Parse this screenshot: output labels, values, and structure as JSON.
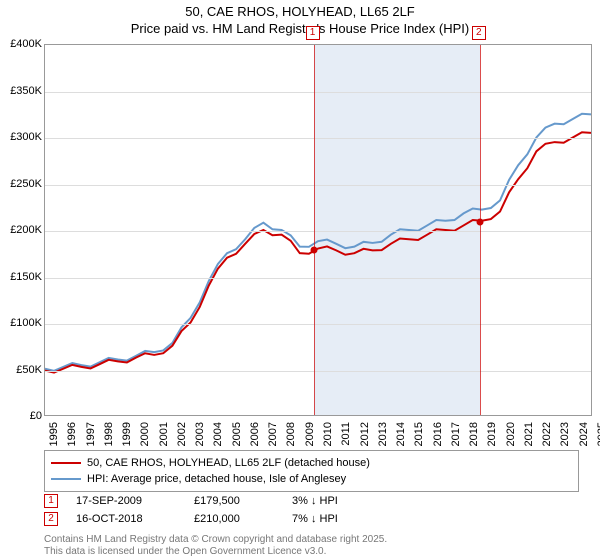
{
  "title_line1": "50, CAE RHOS, HOLYHEAD, LL65 2LF",
  "title_line2": "Price paid vs. HM Land Registry's House Price Index (HPI)",
  "chart": {
    "type": "line",
    "background_color": "#ffffff",
    "shade_color": "#dbe6f2",
    "grid_color": "#dddddd",
    "axis_color": "#999999",
    "title_fontsize": 13,
    "tick_fontsize": 11,
    "xlim": [
      1995,
      2025
    ],
    "ylim": [
      0,
      400
    ],
    "ytick_step": 50,
    "xtick_step": 1,
    "y_tick_labels": [
      "£0",
      "£50K",
      "£100K",
      "£150K",
      "£200K",
      "£250K",
      "£300K",
      "£350K",
      "£400K"
    ],
    "x_tick_labels": [
      "1995",
      "1996",
      "1997",
      "1998",
      "1999",
      "2000",
      "2001",
      "2002",
      "2003",
      "2004",
      "2005",
      "2006",
      "2007",
      "2008",
      "2009",
      "2010",
      "2011",
      "2012",
      "2013",
      "2014",
      "2015",
      "2016",
      "2017",
      "2018",
      "2019",
      "2020",
      "2021",
      "2022",
      "2023",
      "2024",
      "2025"
    ],
    "series": [
      {
        "name": "50, CAE RHOS, HOLYHEAD, LL65 2LF (detached house)",
        "color": "#cc0000",
        "line_width": 2,
        "points": [
          [
            1995,
            48
          ],
          [
            1996,
            50
          ],
          [
            1997,
            52
          ],
          [
            1998,
            55
          ],
          [
            1999,
            58
          ],
          [
            2000,
            62
          ],
          [
            2001,
            65
          ],
          [
            2002,
            75
          ],
          [
            2003,
            100
          ],
          [
            2004,
            140
          ],
          [
            2005,
            170
          ],
          [
            2006,
            185
          ],
          [
            2007,
            200
          ],
          [
            2008,
            195
          ],
          [
            2009,
            175
          ],
          [
            2010,
            180
          ],
          [
            2011,
            178
          ],
          [
            2012,
            175
          ],
          [
            2013,
            178
          ],
          [
            2014,
            185
          ],
          [
            2015,
            190
          ],
          [
            2016,
            195
          ],
          [
            2017,
            200
          ],
          [
            2018,
            205
          ],
          [
            2019,
            210
          ],
          [
            2020,
            220
          ],
          [
            2021,
            255
          ],
          [
            2022,
            285
          ],
          [
            2023,
            295
          ],
          [
            2024,
            300
          ],
          [
            2025,
            305
          ]
        ]
      },
      {
        "name": "HPI: Average price, detached house, Isle of Anglesey",
        "color": "#6699cc",
        "line_width": 2,
        "points": [
          [
            1995,
            50
          ],
          [
            1996,
            52
          ],
          [
            1997,
            54
          ],
          [
            1998,
            57
          ],
          [
            1999,
            60
          ],
          [
            2000,
            64
          ],
          [
            2001,
            68
          ],
          [
            2002,
            78
          ],
          [
            2003,
            105
          ],
          [
            2004,
            145
          ],
          [
            2005,
            175
          ],
          [
            2006,
            190
          ],
          [
            2007,
            208
          ],
          [
            2008,
            200
          ],
          [
            2009,
            182
          ],
          [
            2010,
            188
          ],
          [
            2011,
            185
          ],
          [
            2012,
            182
          ],
          [
            2013,
            186
          ],
          [
            2014,
            195
          ],
          [
            2015,
            200
          ],
          [
            2016,
            205
          ],
          [
            2017,
            210
          ],
          [
            2018,
            218
          ],
          [
            2019,
            222
          ],
          [
            2020,
            232
          ],
          [
            2021,
            270
          ],
          [
            2022,
            300
          ],
          [
            2023,
            315
          ],
          [
            2024,
            320
          ],
          [
            2025,
            325
          ]
        ]
      }
    ],
    "shaded_region": {
      "from": 2009.7,
      "to": 2018.8
    },
    "markers": [
      {
        "label": "1",
        "year": 2009.7,
        "price": 179.5
      },
      {
        "label": "2",
        "year": 2018.8,
        "price": 210
      }
    ]
  },
  "legend": {
    "items": [
      {
        "color": "#cc0000",
        "label": "50, CAE RHOS, HOLYHEAD, LL65 2LF (detached house)"
      },
      {
        "color": "#6699cc",
        "label": "HPI: Average price, detached house, Isle of Anglesey"
      }
    ]
  },
  "transactions": [
    {
      "marker": "1",
      "date": "17-SEP-2009",
      "price": "£179,500",
      "hpi_diff": "3% ↓ HPI"
    },
    {
      "marker": "2",
      "date": "16-OCT-2018",
      "price": "£210,000",
      "hpi_diff": "7% ↓ HPI"
    }
  ],
  "footer_line1": "Contains HM Land Registry data © Crown copyright and database right 2025.",
  "footer_line2": "This data is licensed under the Open Government Licence v3.0."
}
